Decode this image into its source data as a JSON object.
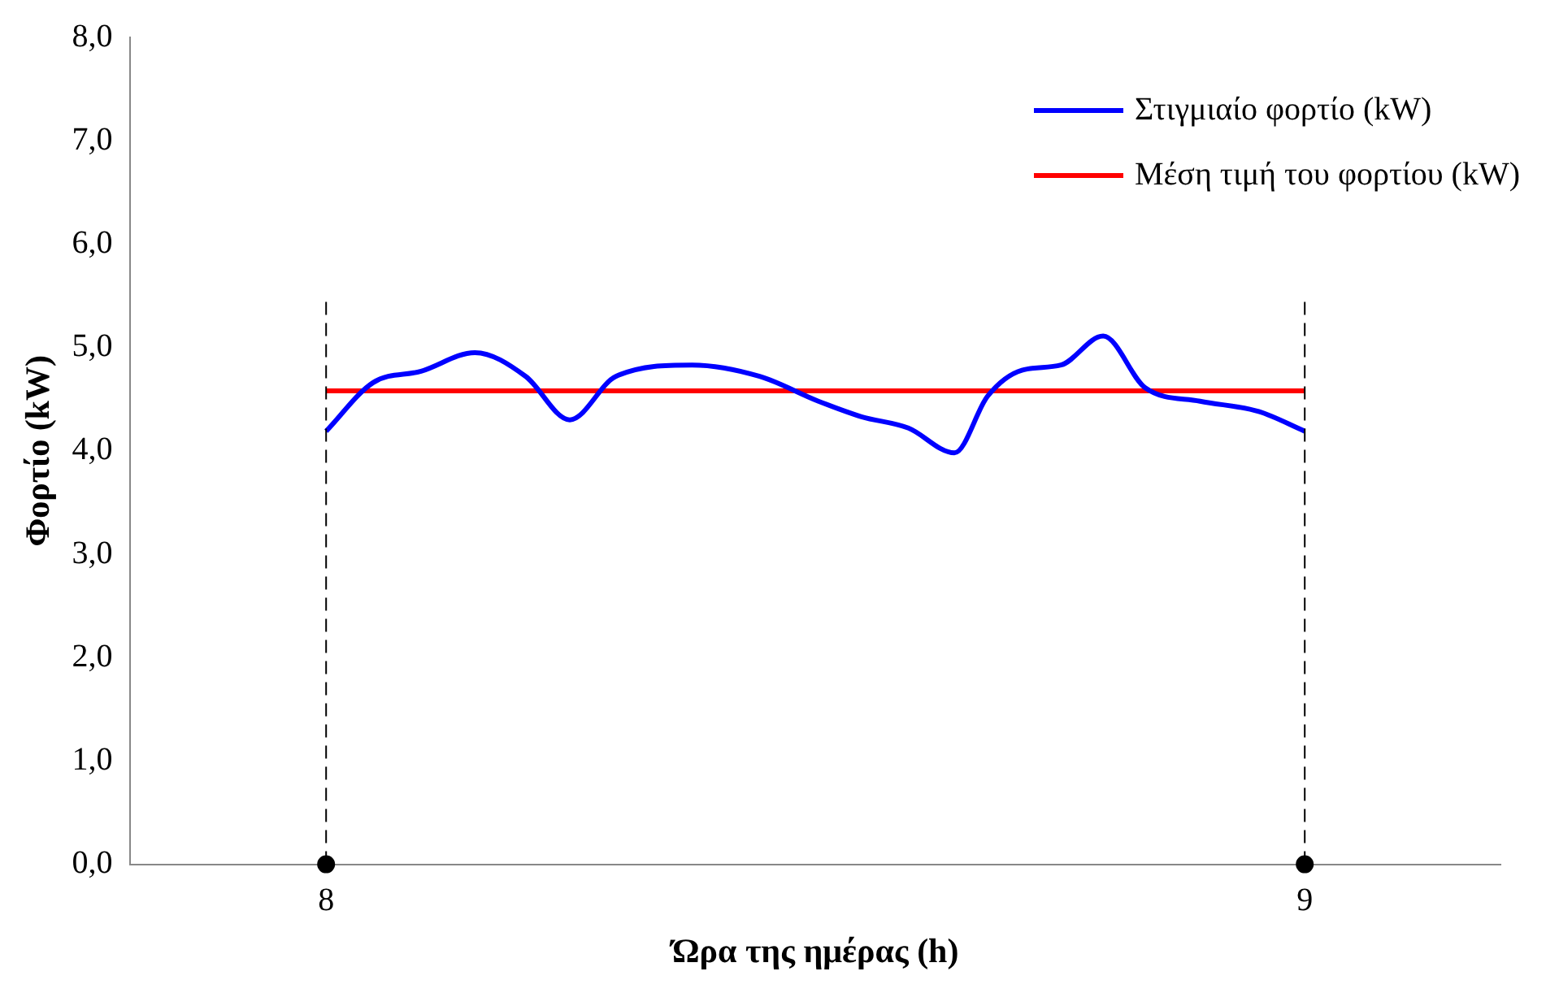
{
  "chart_data": {
    "type": "line",
    "xlabel": "Ώρα της ημέρας (h)",
    "ylabel": "Φορτίο (kW)",
    "xlim": [
      7.8,
      9.2
    ],
    "xticks": [
      8,
      9
    ],
    "ylim": [
      0,
      8
    ],
    "yticks": [
      {
        "value": 0,
        "label": "0,0"
      },
      {
        "value": 1,
        "label": "1,0"
      },
      {
        "value": 2,
        "label": "2,0"
      },
      {
        "value": 3,
        "label": "3,0"
      },
      {
        "value": 4,
        "label": "4,0"
      },
      {
        "value": 5,
        "label": "5,0"
      },
      {
        "value": 6,
        "label": "6,0"
      },
      {
        "value": 7,
        "label": "7,0"
      },
      {
        "value": 8,
        "label": "8,0"
      }
    ],
    "grid": false,
    "legend": "top right",
    "series": [
      {
        "name": "Στιγμιαίο φορτίο (kW)",
        "color": "#0000ff",
        "marker": "none",
        "x": [
          8.0,
          8.048,
          8.097,
          8.152,
          8.204,
          8.249,
          8.296,
          8.374,
          8.443,
          8.503,
          8.547,
          8.595,
          8.642,
          8.676,
          8.711,
          8.751,
          8.794,
          8.837,
          8.893,
          8.953,
          9.0
        ],
        "values": [
          4.19,
          4.66,
          4.77,
          4.95,
          4.72,
          4.3,
          4.72,
          4.83,
          4.72,
          4.48,
          4.33,
          4.22,
          3.98,
          4.53,
          4.78,
          4.83,
          5.11,
          4.61,
          4.48,
          4.38,
          4.19
        ]
      },
      {
        "name": "Μέση τιμή του φορτίου (kW)",
        "color": "#ff0000",
        "x": [
          8,
          9
        ],
        "values": [
          4.58,
          4.58
        ],
        "marker": "none"
      },
      {
        "type": "scatter",
        "color": "#000000",
        "x": [
          8,
          9
        ],
        "values": [
          0,
          0
        ],
        "marker": "circle"
      }
    ],
    "ref_lines": [
      {
        "axis": "x",
        "value": 8,
        "line_style": "dashed",
        "color": "#000000"
      },
      {
        "axis": "x",
        "value": 9,
        "line_style": "dashed",
        "color": "#000000"
      }
    ]
  }
}
